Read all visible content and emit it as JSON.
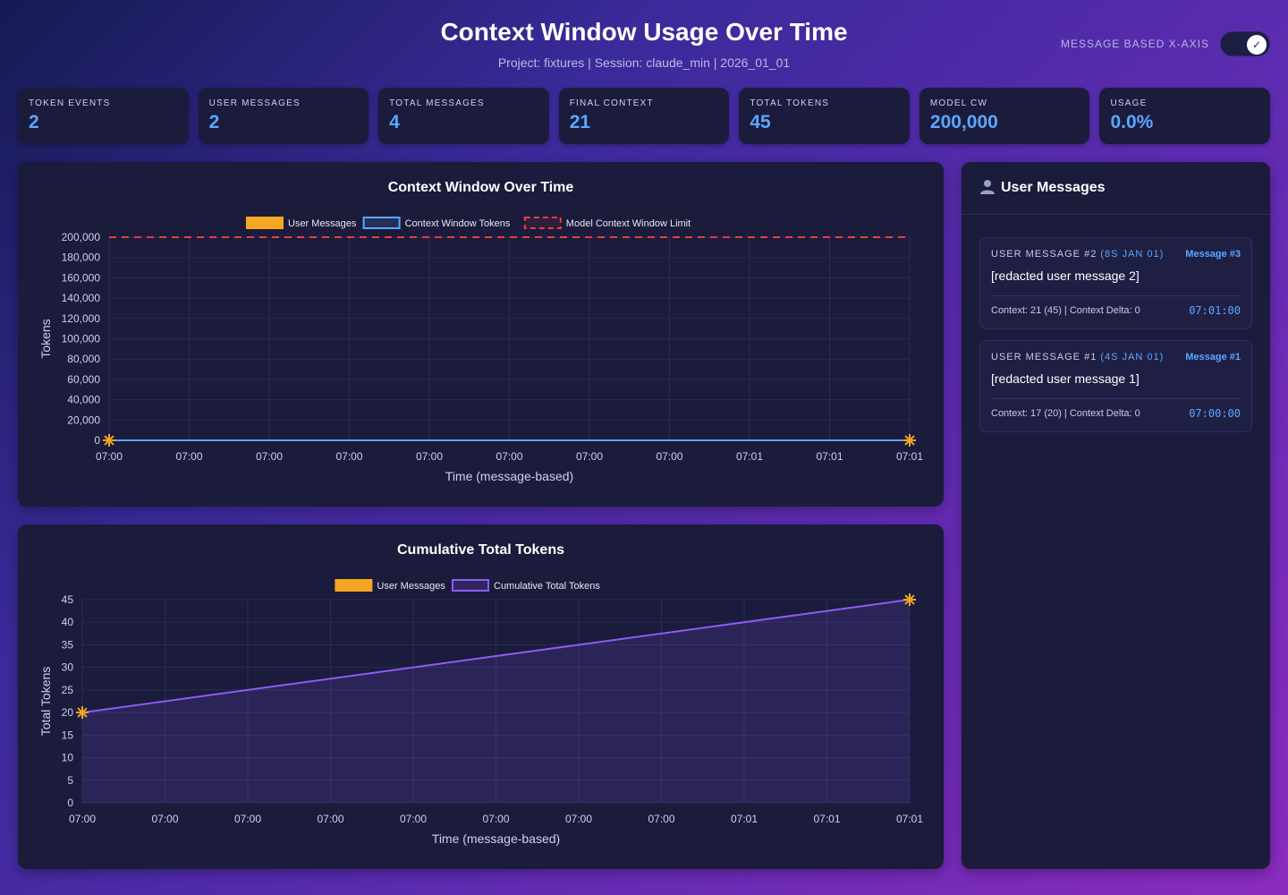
{
  "header": {
    "title": "Context Window Usage Over Time",
    "subtitle": "Project: fixtures | Session: claude_min | 2026_01_01",
    "toggle_label": "MESSAGE BASED X-AXIS",
    "toggle_on": true
  },
  "stats": [
    {
      "label": "TOKEN EVENTS",
      "value": "2"
    },
    {
      "label": "USER MESSAGES",
      "value": "2"
    },
    {
      "label": "TOTAL MESSAGES",
      "value": "4"
    },
    {
      "label": "FINAL CONTEXT",
      "value": "21"
    },
    {
      "label": "TOTAL TOKENS",
      "value": "45"
    },
    {
      "label": "MODEL CW",
      "value": "200,000"
    },
    {
      "label": "USAGE",
      "value": "0.0%"
    }
  ],
  "sidebar": {
    "title": "User Messages",
    "icon": "user-icon",
    "messages": [
      {
        "head": "USER MESSAGE #2",
        "date": "(8S JAN 01)",
        "num": "Message #3",
        "text": "[redacted user message 2]",
        "meta": "Context: 21 (45) | Context Delta: 0",
        "time": "07:01:00"
      },
      {
        "head": "USER MESSAGE #1",
        "date": "(4S JAN 01)",
        "num": "Message #1",
        "text": "[redacted user message 1]",
        "meta": "Context: 17 (20) | Context Delta: 0",
        "time": "07:00:00"
      }
    ]
  },
  "colors": {
    "user_messages": "#f5a623",
    "context_tokens": "#5aa7ff",
    "limit": "#e53e3e",
    "cumulative": "#8b5cf6"
  },
  "chart_data": [
    {
      "type": "line",
      "title": "Context Window Over Time",
      "xlabel": "Time (message-based)",
      "ylabel": "Tokens",
      "x_ticks": [
        "07:00",
        "07:00",
        "07:00",
        "07:00",
        "07:00",
        "07:00",
        "07:00",
        "07:00",
        "07:01",
        "07:01",
        "07:01"
      ],
      "ylim": [
        0,
        200000
      ],
      "y_ticks": [
        "0",
        "20,000",
        "40,000",
        "60,000",
        "80,000",
        "100,000",
        "120,000",
        "140,000",
        "160,000",
        "180,000",
        "200,000"
      ],
      "legend": [
        "User Messages",
        "Context Window Tokens",
        "Model Context Window Limit"
      ],
      "series": [
        {
          "name": "Context Window Tokens",
          "x": [
            0,
            10
          ],
          "values": [
            17,
            21
          ]
        },
        {
          "name": "Model Context Window Limit",
          "x": [
            0,
            10
          ],
          "values": [
            200000,
            200000
          ]
        },
        {
          "name": "User Messages",
          "x": [
            0,
            10
          ],
          "values": [
            17,
            21
          ]
        }
      ],
      "grid": true,
      "legend_position": "top"
    },
    {
      "type": "area",
      "title": "Cumulative Total Tokens",
      "xlabel": "Time (message-based)",
      "ylabel": "Total Tokens",
      "x_ticks": [
        "07:00",
        "07:00",
        "07:00",
        "07:00",
        "07:00",
        "07:00",
        "07:00",
        "07:00",
        "07:01",
        "07:01",
        "07:01"
      ],
      "ylim": [
        0,
        45
      ],
      "y_ticks": [
        "0",
        "5",
        "10",
        "15",
        "20",
        "25",
        "30",
        "35",
        "40",
        "45"
      ],
      "legend": [
        "User Messages",
        "Cumulative Total Tokens"
      ],
      "series": [
        {
          "name": "Cumulative Total Tokens",
          "x": [
            0,
            10
          ],
          "values": [
            20,
            45
          ]
        },
        {
          "name": "User Messages",
          "x": [
            0,
            10
          ],
          "values": [
            20,
            45
          ]
        }
      ],
      "grid": true,
      "legend_position": "top"
    }
  ]
}
